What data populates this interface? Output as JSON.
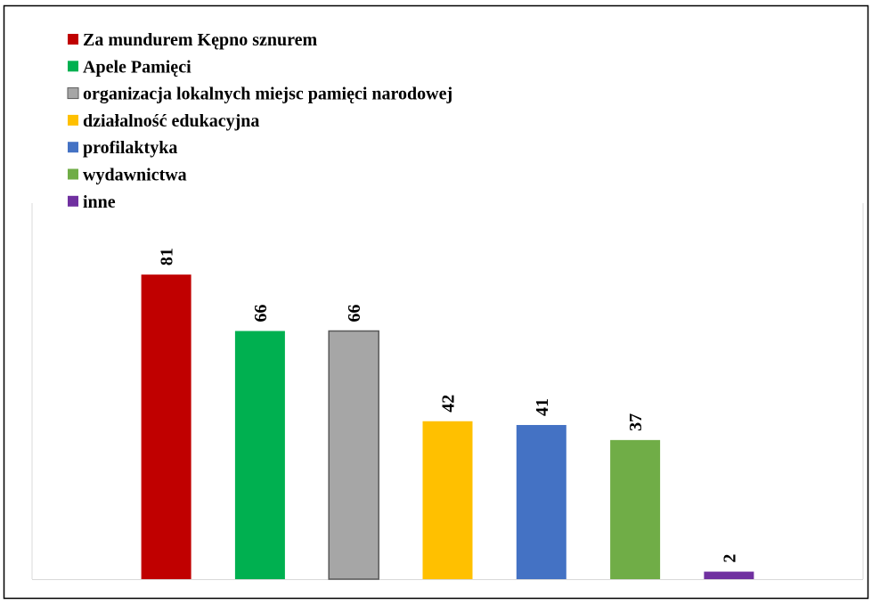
{
  "chart_data": {
    "type": "bar",
    "categories": [
      null
    ],
    "series": [
      {
        "name": "Za mundurem Kępno sznurem",
        "color": "#c00000",
        "values": [
          81
        ]
      },
      {
        "name": "Apele Pamięci",
        "color": "#00b050",
        "values": [
          66
        ]
      },
      {
        "name": "organizacja lokalnych miejsc pamięci narodowej",
        "color": "#a6a6a6",
        "values": [
          66
        ]
      },
      {
        "name": "działalność edukacyjna",
        "color": "#ffc000",
        "values": [
          42
        ]
      },
      {
        "name": "profilaktyka",
        "color": "#4472c4",
        "values": [
          41
        ]
      },
      {
        "name": "wydawnictwa",
        "color": "#70ad47",
        "values": [
          37
        ]
      },
      {
        "name": "inne",
        "color": "#7030a0",
        "values": [
          2
        ]
      }
    ],
    "ylim": [
      0,
      100
    ]
  }
}
